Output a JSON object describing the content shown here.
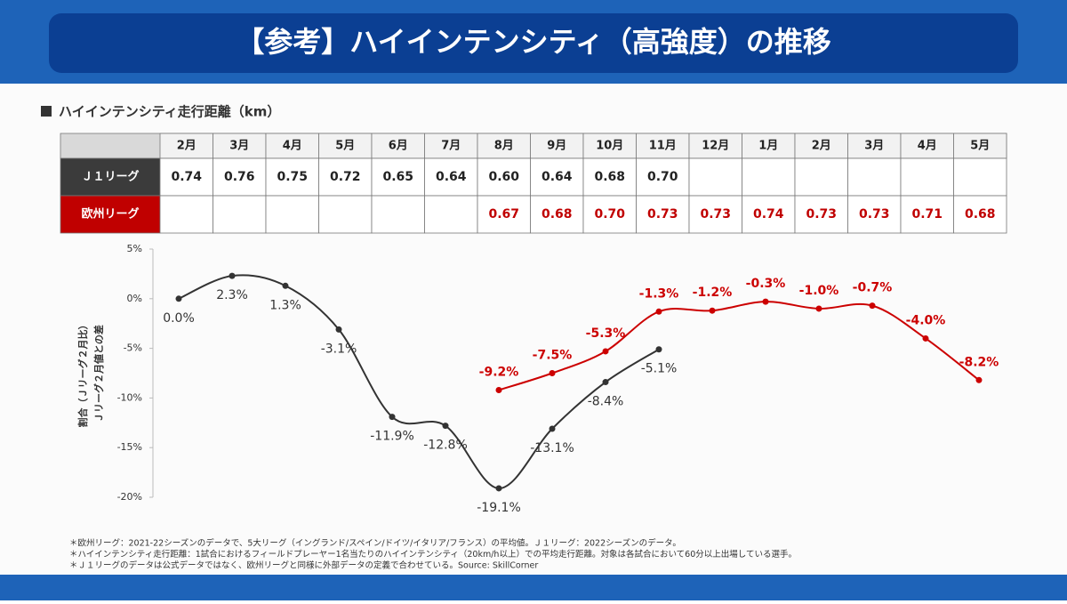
{
  "title": "【参考】ハイインテンシティ（高強度）の推移",
  "section_label": "ハイインテンシティ走行距離（km）",
  "table": {
    "columns": [
      "2月",
      "3月",
      "4月",
      "5月",
      "6月",
      "7月",
      "8月",
      "9月",
      "10月",
      "11月",
      "12月",
      "1月",
      "2月",
      "3月",
      "4月",
      "5月"
    ],
    "rows": [
      {
        "label": "Ｊ１リーグ",
        "values": [
          "0.74",
          "0.76",
          "0.75",
          "0.72",
          "0.65",
          "0.64",
          "0.60",
          "0.64",
          "0.68",
          "0.70",
          null,
          null,
          null,
          null,
          null,
          null
        ]
      },
      {
        "label": "欧州リーグ",
        "values": [
          null,
          null,
          null,
          null,
          null,
          null,
          "0.67",
          "0.68",
          "0.70",
          "0.73",
          "0.73",
          "0.74",
          "0.73",
          "0.73",
          "0.71",
          "0.68"
        ]
      }
    ]
  },
  "chart_data": {
    "type": "line",
    "ylabel": [
      "割合（Ｊリーグ２月比）",
      "Ｊリーグ２月値との差"
    ],
    "ylim": [
      -20,
      5
    ],
    "yticks": [
      {
        "value": 5,
        "label": "5%"
      },
      {
        "value": 0,
        "label": "0%"
      },
      {
        "value": -5,
        "label": "-5%"
      },
      {
        "value": -10,
        "label": "-10%"
      },
      {
        "value": -15,
        "label": "-15%"
      },
      {
        "value": -20,
        "label": "-20%"
      }
    ],
    "series": [
      {
        "color": "#333333",
        "values": [
          0.0,
          2.3,
          1.3,
          -3.1,
          -11.9,
          -12.8,
          -19.1,
          -13.1,
          -8.4,
          -5.1,
          null,
          null,
          null,
          null,
          null,
          null
        ],
        "value_labels": [
          "0.0%",
          "2.3%",
          "1.3%",
          "-3.1%",
          "-11.9%",
          "-12.8%",
          "-19.1%",
          "-13.1%",
          "-8.4%",
          "-5.1%",
          null,
          null,
          null,
          null,
          null,
          null
        ]
      },
      {
        "color": "#cc0000",
        "values": [
          null,
          null,
          null,
          null,
          null,
          null,
          -9.2,
          -7.5,
          -5.3,
          -1.3,
          -1.2,
          -0.3,
          -1.0,
          -0.7,
          -4.0,
          -8.2
        ],
        "value_labels": [
          null,
          null,
          null,
          null,
          null,
          null,
          "-9.2%",
          "-7.5%",
          "-5.3%",
          "-1.3%",
          "-1.2%",
          "-0.3%",
          "-1.0%",
          "-0.7%",
          "-4.0%",
          "-8.2%"
        ]
      }
    ]
  },
  "footnotes": [
    "＊欧州リーグ：2021-22シーズンのデータで、5大リーグ（イングランド/スペイン/ドイツ/イタリア/フランス）の平均値。Ｊ１リーグ：2022シーズンのデータ。",
    "＊ハイインテンシティ走行距離：1試合におけるフィールドプレーヤー1名当たりのハイインテンシティ（20km/h以上）での平均走行距離。対象は各試合において60分以上出場している選手。",
    "＊Ｊ１リーグのデータは公式データではなく、欧州リーグと同様に外部データの定義で合わせている。Source: SkillCorner"
  ]
}
